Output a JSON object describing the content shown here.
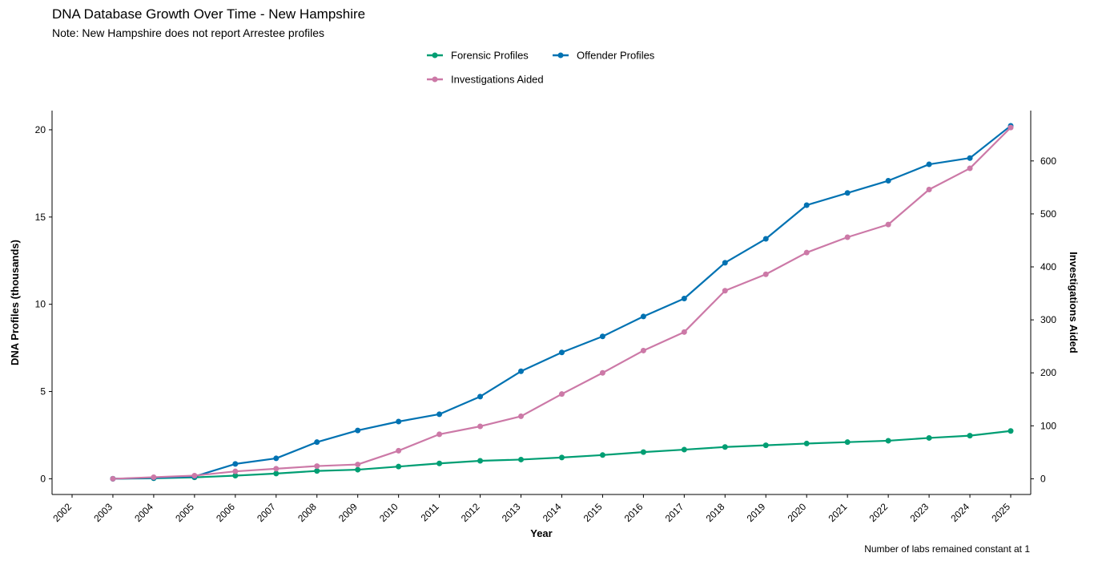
{
  "chart_data": {
    "type": "line",
    "title": "DNA Database Growth Over Time - New Hampshire",
    "subtitle": "Note: New Hampshire does not report Arrestee profiles",
    "caption": "Number of labs remained constant at 1",
    "xlabel": "Year",
    "ylabel": "DNA Profiles (thousands)",
    "y2label": "Investigations Aided",
    "x": [
      "2003",
      "2004",
      "2005",
      "2006",
      "2007",
      "2008",
      "2009",
      "2010",
      "2011",
      "2012",
      "2013",
      "2014",
      "2015",
      "2016",
      "2017",
      "2018",
      "2019",
      "2020",
      "2021",
      "2022",
      "2023",
      "2024",
      "2025"
    ],
    "x_ticks": [
      "2002",
      "2003",
      "2004",
      "2005",
      "2006",
      "2007",
      "2008",
      "2009",
      "2010",
      "2011",
      "2012",
      "2013",
      "2014",
      "2015",
      "2016",
      "2017",
      "2018",
      "2019",
      "2020",
      "2021",
      "2022",
      "2023",
      "2024",
      "2025"
    ],
    "xlim": [
      2002,
      2025
    ],
    "ylim": [
      -0.9,
      21.1
    ],
    "y_ticks": [
      0,
      5,
      10,
      15,
      20
    ],
    "y2lim": [
      -29.6,
      695
    ],
    "y2_ticks": [
      0,
      100,
      200,
      300,
      400,
      500,
      600
    ],
    "grid": false,
    "legend_position": "top-center",
    "series": [
      {
        "name": "Forensic Profiles",
        "axis": "left",
        "color": "#009E73",
        "values": [
          0.0,
          0.03,
          0.08,
          0.18,
          0.3,
          0.45,
          0.52,
          0.7,
          0.88,
          1.03,
          1.1,
          1.22,
          1.36,
          1.53,
          1.67,
          1.82,
          1.92,
          2.02,
          2.1,
          2.18,
          2.34,
          2.47,
          2.74
        ]
      },
      {
        "name": "Offender Profiles",
        "axis": "left",
        "color": "#0072B2",
        "values": [
          0.0,
          0.05,
          0.13,
          0.85,
          1.17,
          2.1,
          2.77,
          3.28,
          3.7,
          4.71,
          6.16,
          7.24,
          8.16,
          9.3,
          10.33,
          12.38,
          13.75,
          15.68,
          16.38,
          17.08,
          18.02,
          18.38,
          20.23
        ]
      },
      {
        "name": "Investigations Aided",
        "axis": "right",
        "color": "#CC79A7",
        "values": [
          0,
          3,
          6,
          14,
          19,
          24,
          27,
          53,
          84,
          99,
          118,
          160,
          200,
          242,
          277,
          355,
          386,
          427,
          456,
          480,
          546,
          586,
          663
        ]
      }
    ]
  }
}
